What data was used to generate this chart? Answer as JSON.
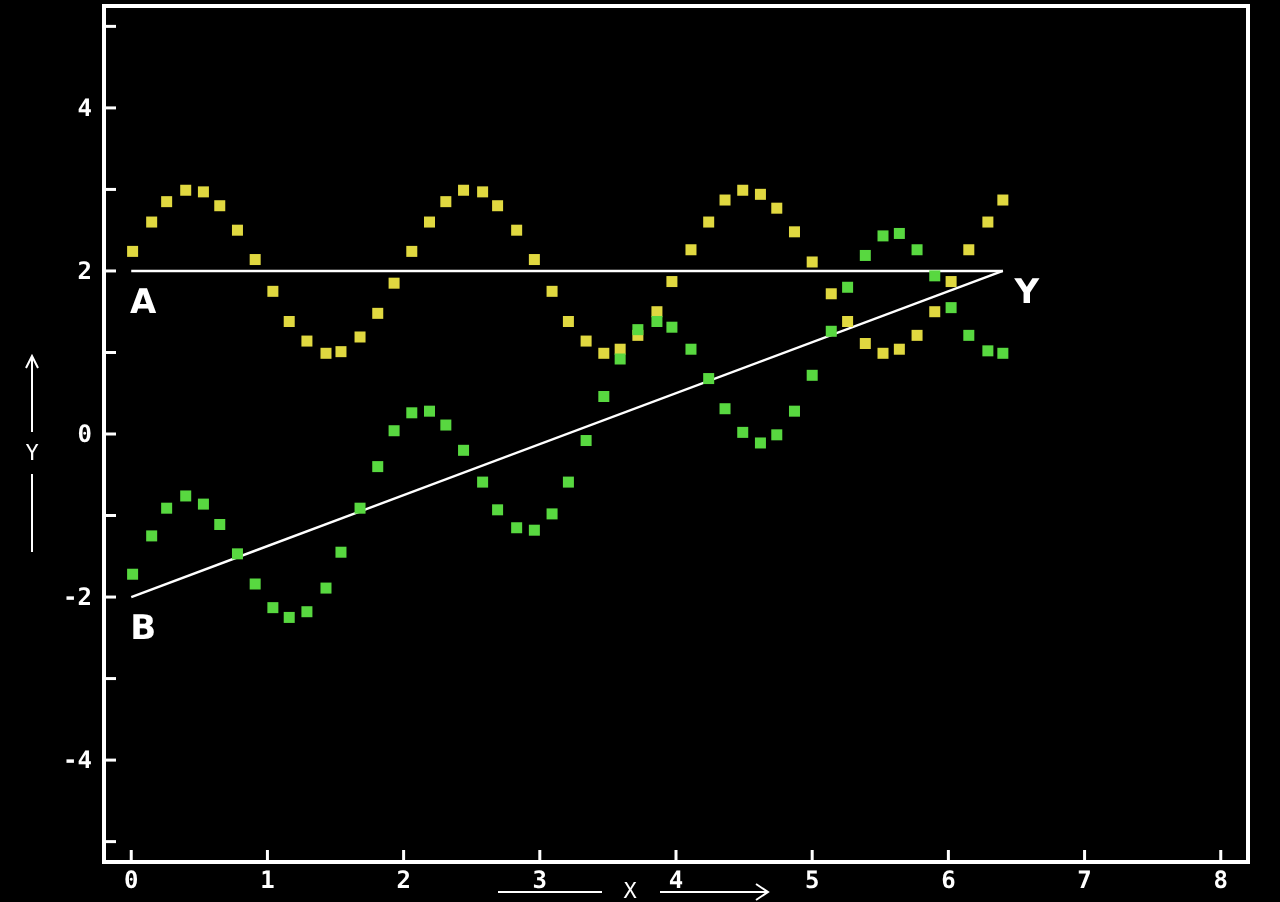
{
  "chart_data": {
    "type": "scatter",
    "xlabel": "X",
    "ylabel": "Y",
    "xlim": [
      -0.2,
      8.2
    ],
    "ylim": [
      -5.25,
      5.25
    ],
    "xticks": [
      0,
      1,
      2,
      3,
      4,
      5,
      6,
      7,
      8
    ],
    "yticks": [
      {
        "value": -5,
        "label": null
      },
      -4,
      {
        "value": -3,
        "label": null
      },
      -2,
      {
        "value": -1,
        "label": null
      },
      0,
      {
        "value": 1,
        "label": null
      },
      2,
      {
        "value": 3,
        "label": null
      },
      4,
      {
        "value": 5,
        "label": null
      }
    ],
    "grid": false,
    "marker": "square",
    "series": [
      {
        "color": "#e0d840",
        "x": [
          0.01,
          0.15,
          0.26,
          0.4,
          0.53,
          0.65,
          0.78,
          0.91,
          1.04,
          1.16,
          1.29,
          1.43,
          1.54,
          1.68,
          1.81,
          1.93,
          2.06,
          2.19,
          2.31,
          2.44,
          2.58,
          2.69,
          2.83,
          2.96,
          3.09,
          3.21,
          3.34,
          3.47,
          3.59,
          3.72,
          3.86,
          3.97,
          4.11,
          4.24,
          4.36,
          4.49,
          4.62,
          4.74,
          4.87,
          5.0,
          5.14,
          5.26,
          5.39,
          5.52,
          5.64,
          5.77,
          5.9,
          6.02,
          6.15,
          6.29,
          6.4
        ],
        "values": [
          2.24,
          2.6,
          2.85,
          2.99,
          2.97,
          2.8,
          2.5,
          2.14,
          1.75,
          1.38,
          1.14,
          0.99,
          1.01,
          1.19,
          1.48,
          1.85,
          2.24,
          2.6,
          2.85,
          2.99,
          2.97,
          2.8,
          2.5,
          2.14,
          1.75,
          1.38,
          1.14,
          0.99,
          1.04,
          1.21,
          1.5,
          1.87,
          2.26,
          2.6,
          2.87,
          2.99,
          2.94,
          2.77,
          2.48,
          2.11,
          1.72,
          1.38,
          1.11,
          0.99,
          1.04,
          1.21,
          1.5,
          1.87,
          2.26,
          2.6,
          2.87
        ]
      },
      {
        "color": "#58d840",
        "x": [
          0.01,
          0.15,
          0.26,
          0.4,
          0.53,
          0.65,
          0.78,
          0.91,
          1.04,
          1.16,
          1.29,
          1.43,
          1.54,
          1.68,
          1.81,
          1.93,
          2.06,
          2.19,
          2.31,
          2.44,
          2.58,
          2.69,
          2.83,
          2.96,
          3.09,
          3.21,
          3.34,
          3.47,
          3.59,
          3.72,
          3.86,
          3.97,
          4.11,
          4.24,
          4.36,
          4.49,
          4.62,
          4.74,
          4.87,
          5.0,
          5.14,
          5.26,
          5.39,
          5.52,
          5.64,
          5.77,
          5.9,
          6.02,
          6.15,
          6.29,
          6.4
        ],
        "values": [
          -1.72,
          -1.25,
          -0.91,
          -0.76,
          -0.86,
          -1.11,
          -1.47,
          -1.84,
          -2.13,
          -2.25,
          -2.18,
          -1.89,
          -1.45,
          -0.91,
          -0.4,
          0.04,
          0.26,
          0.28,
          0.11,
          -0.2,
          -0.59,
          -0.93,
          -1.15,
          -1.18,
          -0.98,
          -0.59,
          -0.08,
          0.46,
          0.92,
          1.28,
          1.38,
          1.31,
          1.04,
          0.68,
          0.31,
          0.02,
          -0.11,
          -0.01,
          0.28,
          0.72,
          1.26,
          1.8,
          2.19,
          2.43,
          2.46,
          2.26,
          1.94,
          1.55,
          1.21,
          1.02,
          0.99
        ]
      },
      {
        "type": "line",
        "color": "#ffffff",
        "line_style": "solid",
        "marker": "none",
        "x": [
          0,
          6.4
        ],
        "values": [
          2,
          2
        ]
      },
      {
        "type": "line",
        "color": "#ffffff",
        "line_style": "solid",
        "marker": "none",
        "x": [
          0,
          6.4
        ],
        "values": [
          -2,
          2
        ]
      }
    ],
    "annotations": [
      "A",
      "B",
      "Y"
    ]
  }
}
